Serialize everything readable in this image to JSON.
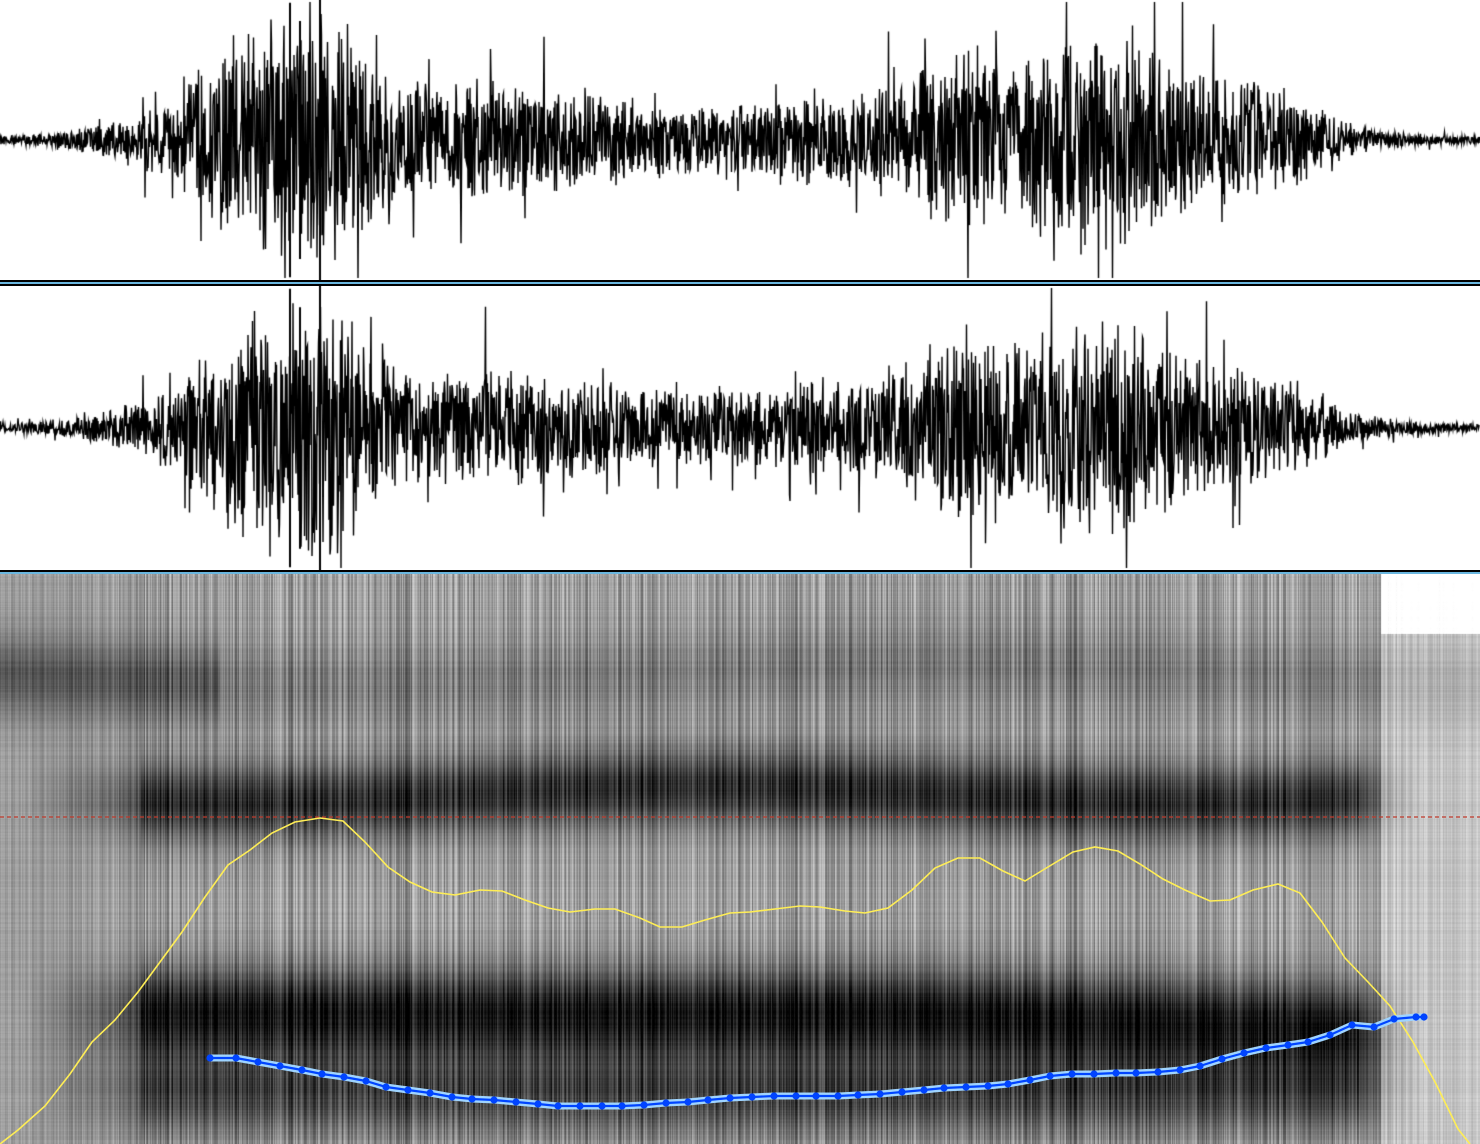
{
  "app": {
    "view": "sound-editor"
  },
  "waveform": {
    "channels": 2,
    "line_color": "#000000",
    "background": "#ffffff",
    "divider_color": "#6ab7e0"
  },
  "spectrogram": {
    "palette": "grayscale",
    "cursor_line": {
      "color": "#c0392b",
      "style": "dashed"
    }
  },
  "pitch_contour": {
    "color": "#ffee55"
  },
  "formant_track": {
    "color": "#0044ff",
    "highlight_color": "#9fd4ff",
    "marker": "dot"
  }
}
